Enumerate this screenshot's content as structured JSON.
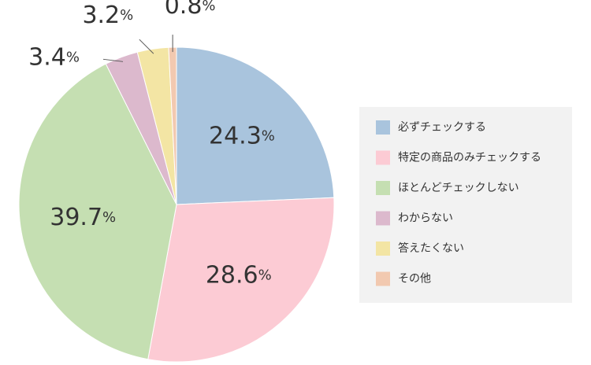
{
  "chart_data": {
    "type": "pie",
    "categories": [
      "必ずチェックする",
      "特定の商品のみチェックする",
      "ほとんどチェックしない",
      "わからない",
      "答えたくない",
      "その他"
    ],
    "values": [
      24.3,
      28.6,
      39.7,
      3.4,
      3.2,
      0.8
    ],
    "value_labels": [
      "24.3%",
      "28.6%",
      "39.7%",
      "3.4%",
      "3.2%",
      "0.8%"
    ],
    "colors": [
      "#a9c4dd",
      "#fccbd4",
      "#c5dfb2",
      "#dcb9cd",
      "#f3e5a4",
      "#f2c9b0"
    ],
    "legend": "right"
  }
}
